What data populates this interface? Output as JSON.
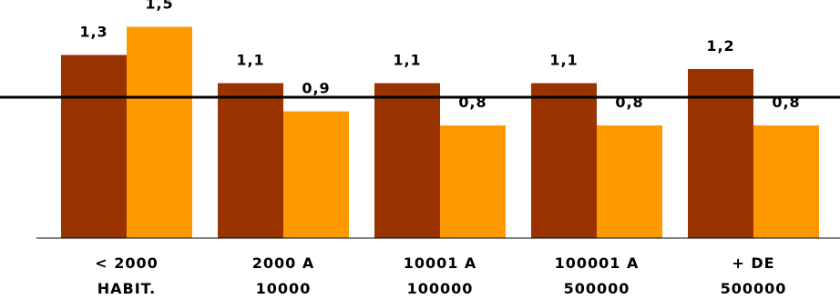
{
  "chart_data": {
    "type": "bar",
    "categories": [
      [
        "< 2000",
        "HABIT."
      ],
      [
        "2000 A",
        "10000"
      ],
      [
        "10001 A",
        "100000"
      ],
      [
        "100001 A",
        "500000"
      ],
      [
        "+ DE",
        "500000"
      ]
    ],
    "series": [
      {
        "values": [
          1.3,
          1.1,
          1.1,
          1.1,
          1.2
        ],
        "labels": [
          "1,3",
          "1,1",
          "1,1",
          "1,1",
          "1,2"
        ],
        "color": "#993300"
      },
      {
        "values": [
          1.5,
          0.9,
          0.8,
          0.8,
          0.8
        ],
        "labels": [
          "1,5",
          "0,9",
          "0,8",
          "0,8",
          "0,8"
        ],
        "color": "#ff9900"
      }
    ],
    "reference_line": 1.0,
    "ylim": [
      0,
      1.5
    ],
    "grid": false,
    "legend": "none",
    "title": "",
    "xlabel": "",
    "ylabel": ""
  }
}
